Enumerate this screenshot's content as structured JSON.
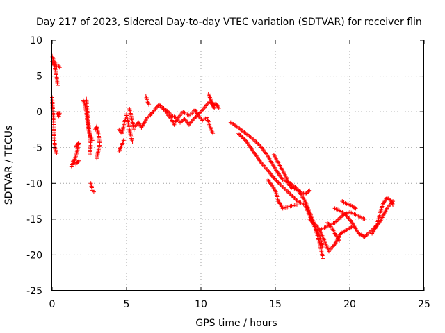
{
  "chart_data": {
    "type": "scatter",
    "title": "Day 217 of 2023, Sidereal Day-to-day VTEC variation (SDTVAR) for receiver flin",
    "xlabel": "GPS time / hours",
    "ylabel": "SDTVAR / TECUs",
    "xlim": [
      0,
      25
    ],
    "ylim": [
      -25,
      10
    ],
    "x_ticks": [
      0,
      5,
      10,
      15,
      20,
      25
    ],
    "y_ticks": [
      -25,
      -20,
      -15,
      -10,
      -5,
      0,
      5,
      10
    ],
    "grid": true,
    "marker": "plus",
    "marker_color": "#ff0000",
    "tracks": [
      {
        "points": [
          [
            0.0,
            7.8
          ],
          [
            0.1,
            7.2
          ],
          [
            0.2,
            6.8
          ],
          [
            0.3,
            6.4
          ],
          [
            0.4,
            6.6
          ],
          [
            0.5,
            6.2
          ]
        ]
      },
      {
        "points": [
          [
            0.0,
            7.0
          ],
          [
            0.15,
            6.5
          ],
          [
            0.3,
            5.0
          ],
          [
            0.35,
            4.0
          ],
          [
            0.4,
            3.7
          ]
        ]
      },
      {
        "points": [
          [
            0.0,
            2.0
          ],
          [
            0.05,
            0.0
          ],
          [
            0.1,
            -2.0
          ],
          [
            0.15,
            -4.0
          ],
          [
            0.2,
            -5.2
          ],
          [
            0.3,
            -5.8
          ]
        ]
      },
      {
        "points": [
          [
            0.35,
            -0.3
          ],
          [
            0.4,
            0.0
          ],
          [
            0.45,
            -0.6
          ],
          [
            0.5,
            -0.2
          ]
        ]
      },
      {
        "points": [
          [
            1.3,
            -7.6
          ],
          [
            1.5,
            -6.8
          ],
          [
            1.7,
            -5.4
          ],
          [
            1.75,
            -4.6
          ],
          [
            1.8,
            -4.2
          ],
          [
            1.6,
            -4.9
          ]
        ]
      },
      {
        "points": [
          [
            1.4,
            -6.9
          ],
          [
            1.6,
            -7.3
          ],
          [
            1.8,
            -6.8
          ],
          [
            1.7,
            -7.1
          ]
        ]
      },
      {
        "points": [
          [
            2.1,
            1.6
          ],
          [
            2.2,
            1.0
          ],
          [
            2.3,
            0.0
          ],
          [
            2.4,
            -2.0
          ],
          [
            2.5,
            -3.0
          ],
          [
            2.6,
            -3.5
          ],
          [
            2.7,
            -4.0
          ]
        ]
      },
      {
        "points": [
          [
            2.3,
            1.8
          ],
          [
            2.4,
            -1.0
          ],
          [
            2.5,
            -2.8
          ],
          [
            2.6,
            -4.5
          ],
          [
            2.55,
            -6.0
          ]
        ]
      },
      {
        "points": [
          [
            2.6,
            -10.0
          ],
          [
            2.7,
            -11.0
          ],
          [
            2.8,
            -11.2
          ]
        ]
      },
      {
        "points": [
          [
            2.9,
            -2.5
          ],
          [
            3.0,
            -2.0
          ],
          [
            3.1,
            -3.0
          ],
          [
            3.2,
            -4.5
          ],
          [
            3.0,
            -6.5
          ],
          [
            3.1,
            -5.5
          ]
        ]
      },
      {
        "points": [
          [
            4.5,
            -2.5
          ],
          [
            4.7,
            -3.0
          ],
          [
            4.8,
            -2.0
          ],
          [
            4.9,
            -1.2
          ],
          [
            5.0,
            -0.5
          ]
        ]
      },
      {
        "points": [
          [
            4.5,
            -5.5
          ],
          [
            4.6,
            -5.0
          ],
          [
            4.7,
            -4.6
          ],
          [
            4.8,
            -4.0
          ]
        ]
      },
      {
        "points": [
          [
            5.0,
            -0.3
          ],
          [
            5.2,
            -2.5
          ],
          [
            5.3,
            -3.5
          ],
          [
            5.4,
            -4.2
          ]
        ]
      },
      {
        "points": [
          [
            5.2,
            0.4
          ],
          [
            5.4,
            -1.5
          ],
          [
            5.5,
            -2.5
          ]
        ]
      },
      {
        "points": [
          [
            5.6,
            -2.0
          ],
          [
            5.8,
            -1.5
          ],
          [
            6.0,
            -2.2
          ],
          [
            6.2,
            -1.5
          ],
          [
            6.4,
            -0.8
          ],
          [
            6.6,
            -0.5
          ]
        ]
      },
      {
        "points": [
          [
            6.3,
            2.2
          ],
          [
            6.4,
            1.5
          ],
          [
            6.5,
            1.0
          ]
        ]
      },
      {
        "points": [
          [
            6.6,
            -0.4
          ],
          [
            6.8,
            0.0
          ],
          [
            7.0,
            0.6
          ],
          [
            7.2,
            1.0
          ],
          [
            7.4,
            0.5
          ],
          [
            7.6,
            0.2
          ],
          [
            7.8,
            -0.5
          ],
          [
            8.0,
            -1.0
          ],
          [
            8.2,
            -1.8
          ],
          [
            8.4,
            -1.0
          ],
          [
            8.6,
            -0.5
          ],
          [
            8.8,
            0.0
          ],
          [
            9.0,
            -0.3
          ],
          [
            9.2,
            -0.5
          ],
          [
            9.4,
            -0.2
          ],
          [
            9.6,
            0.3
          ],
          [
            9.8,
            -0.4
          ],
          [
            10.0,
            0.0
          ],
          [
            10.2,
            0.5
          ],
          [
            10.4,
            1.0
          ],
          [
            10.6,
            1.5
          ],
          [
            10.8,
            0.8
          ],
          [
            11.0,
            1.2
          ],
          [
            11.2,
            0.5
          ]
        ]
      },
      {
        "points": [
          [
            7.5,
            0.5
          ],
          [
            7.8,
            0.0
          ],
          [
            8.0,
            -0.5
          ],
          [
            8.3,
            -0.8
          ],
          [
            8.6,
            -1.5
          ],
          [
            8.9,
            -1.0
          ],
          [
            9.2,
            -1.8
          ],
          [
            9.5,
            -1.0
          ],
          [
            9.8,
            -0.5
          ],
          [
            10.1,
            -1.2
          ],
          [
            10.4,
            -0.8
          ],
          [
            10.6,
            -2.0
          ],
          [
            10.8,
            -3.0
          ]
        ]
      },
      {
        "points": [
          [
            10.5,
            2.5
          ],
          [
            10.6,
            2.0
          ],
          [
            10.7,
            1.5
          ],
          [
            10.8,
            1.0
          ],
          [
            10.9,
            0.5
          ]
        ]
      },
      {
        "points": [
          [
            12.0,
            -1.5
          ],
          [
            12.5,
            -2.2
          ],
          [
            13.0,
            -3.0
          ],
          [
            13.5,
            -3.8
          ],
          [
            14.0,
            -4.8
          ],
          [
            14.5,
            -6.2
          ],
          [
            15.0,
            -8.0
          ],
          [
            15.5,
            -9.5
          ],
          [
            16.0,
            -10.0
          ],
          [
            16.5,
            -10.8
          ],
          [
            17.0,
            -12.5
          ],
          [
            17.5,
            -15.0
          ],
          [
            18.0,
            -18.5
          ],
          [
            18.2,
            -20.5
          ]
        ]
      },
      {
        "points": [
          [
            12.5,
            -3.0
          ],
          [
            13.0,
            -4.0
          ],
          [
            13.5,
            -5.5
          ],
          [
            14.0,
            -7.0
          ],
          [
            14.5,
            -8.2
          ],
          [
            15.0,
            -9.5
          ],
          [
            15.5,
            -10.5
          ],
          [
            16.0,
            -11.5
          ],
          [
            16.5,
            -12.5
          ],
          [
            17.0,
            -13.0
          ],
          [
            17.5,
            -15.5
          ],
          [
            18.0,
            -17.5
          ],
          [
            18.2,
            -19.0
          ]
        ]
      },
      {
        "points": [
          [
            14.5,
            -9.5
          ],
          [
            15.0,
            -11.0
          ],
          [
            15.2,
            -12.5
          ],
          [
            15.5,
            -13.5
          ],
          [
            16.0,
            -13.2
          ],
          [
            16.5,
            -13.0
          ]
        ]
      },
      {
        "points": [
          [
            14.9,
            -6.0
          ],
          [
            15.3,
            -7.5
          ],
          [
            15.7,
            -9.0
          ],
          [
            16.0,
            -10.5
          ],
          [
            16.5,
            -11.0
          ],
          [
            17.0,
            -11.5
          ],
          [
            17.3,
            -11.0
          ]
        ]
      },
      {
        "points": [
          [
            17.3,
            -15.0
          ],
          [
            17.8,
            -16.0
          ],
          [
            18.2,
            -17.5
          ],
          [
            18.6,
            -19.5
          ],
          [
            19.0,
            -18.5
          ],
          [
            19.4,
            -17.0
          ],
          [
            19.8,
            -16.5
          ],
          [
            20.2,
            -16.0
          ]
        ]
      },
      {
        "points": [
          [
            18.0,
            -16.5
          ],
          [
            18.5,
            -16.0
          ],
          [
            19.0,
            -15.5
          ],
          [
            19.5,
            -14.5
          ],
          [
            20.0,
            -14.0
          ],
          [
            20.5,
            -14.5
          ],
          [
            21.0,
            -15.0
          ]
        ]
      },
      {
        "points": [
          [
            19.0,
            -13.5
          ],
          [
            19.5,
            -14.0
          ],
          [
            20.0,
            -15.0
          ],
          [
            20.3,
            -16.0
          ],
          [
            20.6,
            -17.0
          ],
          [
            21.0,
            -17.5
          ],
          [
            21.5,
            -16.5
          ],
          [
            22.0,
            -15.5
          ],
          [
            22.5,
            -13.5
          ],
          [
            22.9,
            -12.5
          ]
        ]
      },
      {
        "points": [
          [
            21.5,
            -17.0
          ],
          [
            21.8,
            -16.0
          ],
          [
            22.0,
            -14.5
          ],
          [
            22.2,
            -13.0
          ],
          [
            22.5,
            -12.0
          ],
          [
            22.8,
            -12.5
          ],
          [
            22.9,
            -13.0
          ]
        ]
      },
      {
        "points": [
          [
            19.5,
            -12.5
          ],
          [
            19.7,
            -12.8
          ],
          [
            20.0,
            -13.0
          ],
          [
            20.4,
            -13.5
          ]
        ]
      },
      {
        "points": [
          [
            18.5,
            -15.5
          ],
          [
            18.8,
            -16.2
          ],
          [
            19.0,
            -17.0
          ],
          [
            19.3,
            -18.0
          ]
        ]
      }
    ]
  }
}
